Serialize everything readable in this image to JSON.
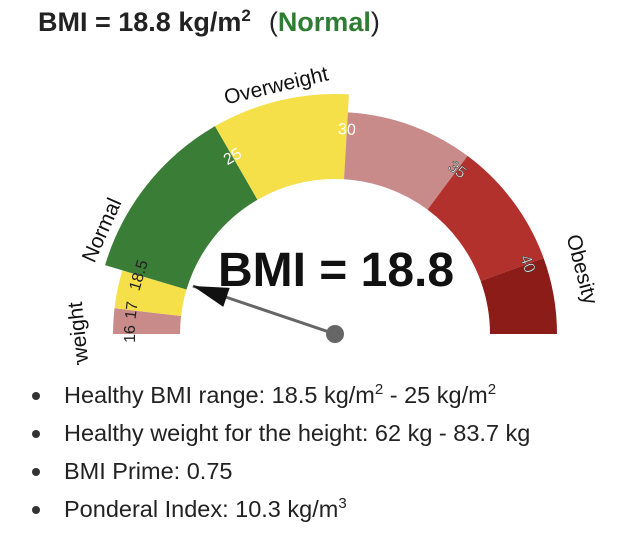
{
  "result": {
    "prefix": "BMI = 18.8 kg/m",
    "sup": "2",
    "paren_open": "(",
    "category": "Normal",
    "paren_close": ")",
    "category_color": "#2e7d32"
  },
  "gauge": {
    "center_text": "BMI = 18.8",
    "bmi_value": 18.8,
    "scale_min": 16,
    "scale_max": 43,
    "segments": [
      {
        "from": 16,
        "to": 17,
        "color": "#c98a8a"
      },
      {
        "from": 17,
        "to": 18.5,
        "color": "#f6e04a"
      },
      {
        "from": 18.5,
        "to": 25,
        "color": "#3a7d36"
      },
      {
        "from": 25,
        "to": 30,
        "color": "#f6e04a"
      },
      {
        "from": 30,
        "to": 35,
        "color": "#c98a8a"
      },
      {
        "from": 35,
        "to": 40,
        "color": "#b3312d"
      },
      {
        "from": 40,
        "to": 43,
        "color": "#8b1c17"
      }
    ],
    "outer_band_color": "#b3312d",
    "ticks": [
      "16",
      "17",
      "18.5",
      "25",
      "30",
      "35",
      "40"
    ],
    "categories": [
      {
        "label": "Underweight",
        "value": 15.1
      },
      {
        "label": "Normal",
        "value": 19.6
      },
      {
        "label": "Overweight",
        "value": 27.5
      },
      {
        "label": "Obesity",
        "value": 40.8
      }
    ]
  },
  "details": [
    {
      "text": "Healthy BMI range: 18.5 kg/m",
      "sup": "2",
      "text2": " - 25 kg/m",
      "sup2": "2"
    },
    {
      "text": "Healthy weight for the height: 62 kg - 83.7 kg",
      "sup": "",
      "text2": "",
      "sup2": ""
    },
    {
      "text": "BMI Prime: 0.75",
      "sup": "",
      "text2": "",
      "sup2": ""
    },
    {
      "text": "Ponderal Index: 10.3 kg/m",
      "sup": "3",
      "text2": "",
      "sup2": ""
    }
  ]
}
